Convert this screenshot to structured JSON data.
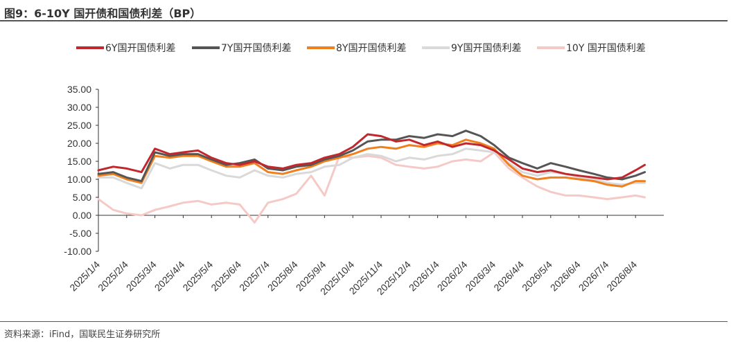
{
  "header": {
    "title": "图9：6-10Y 国开债和国债利差（BP）"
  },
  "footer": {
    "source": "资料来源：iFind，国联民生证券研究所"
  },
  "chart_data": {
    "type": "line",
    "title": "图9：6-10Y 国开债和国债利差（BP）",
    "xlabel": "",
    "ylabel": "",
    "ylim": [
      -10,
      35
    ],
    "yticks": [
      "35.00",
      "30.00",
      "25.00",
      "20.00",
      "15.00",
      "10.00",
      "5.00",
      "0.00",
      "-5.00",
      "-10.00"
    ],
    "ytick_values": [
      35,
      30,
      25,
      20,
      15,
      10,
      5,
      0,
      -5,
      -10
    ],
    "xticks": [
      "2025/1/4",
      "2025/2/4",
      "2025/3/4",
      "2025/4/4",
      "2025/5/4",
      "2025/6/4",
      "2025/7/4",
      "2025/8/4",
      "2025/9/4",
      "2025/10/4",
      "2025/11/4",
      "2025/12/4",
      "2026/1/4",
      "2026/2/4",
      "2026/3/4",
      "2026/4/4",
      "2026/5/4",
      "2026/6/4",
      "2026/7/4",
      "2026/8/4"
    ],
    "legend_position": "top",
    "grid": false,
    "x": [
      "2025/1/4",
      "2025/1/20",
      "2025/2/4",
      "2025/2/20",
      "2025/3/4",
      "2025/3/20",
      "2025/4/4",
      "2025/4/20",
      "2025/5/4",
      "2025/5/20",
      "2025/6/4",
      "2025/6/20",
      "2025/7/4",
      "2025/7/20",
      "2025/8/4",
      "2025/8/20",
      "2025/9/4",
      "2025/9/20",
      "2025/10/4",
      "2025/10/20",
      "2025/11/4",
      "2025/11/20",
      "2025/12/4",
      "2025/12/20",
      "2026/1/4",
      "2026/1/20",
      "2026/2/4",
      "2026/2/20",
      "2026/3/4",
      "2026/3/20",
      "2026/4/4",
      "2026/4/20",
      "2026/5/4",
      "2026/5/20",
      "2026/6/4",
      "2026/6/20",
      "2026/7/4",
      "2026/7/20",
      "2026/8/4",
      "2026/8/14"
    ],
    "series": [
      {
        "name": "6Y国开国债利差",
        "color": "#c0282d",
        "values": [
          12.5,
          13.5,
          13.0,
          12.0,
          18.5,
          17.0,
          17.5,
          18.0,
          16.0,
          14.5,
          14.0,
          15.0,
          13.5,
          13.0,
          14.0,
          14.5,
          16.0,
          17.0,
          19.0,
          22.5,
          22.0,
          20.5,
          21.0,
          19.5,
          20.5,
          19.0,
          20.0,
          19.5,
          18.0,
          15.5,
          13.0,
          12.0,
          12.5,
          11.5,
          11.0,
          10.5,
          10.0,
          10.5,
          12.5,
          14.0
        ]
      },
      {
        "name": "7Y国开国债利差",
        "color": "#555555",
        "values": [
          11.5,
          12.0,
          10.5,
          9.5,
          17.5,
          16.5,
          17.0,
          17.0,
          15.5,
          14.0,
          14.5,
          15.5,
          13.0,
          12.5,
          13.5,
          14.0,
          15.5,
          16.5,
          18.0,
          20.5,
          21.0,
          21.0,
          22.0,
          21.5,
          22.5,
          22.0,
          23.5,
          22.0,
          19.5,
          16.0,
          14.5,
          13.0,
          14.5,
          13.5,
          12.5,
          11.5,
          10.5,
          10.0,
          11.0,
          12.0
        ]
      },
      {
        "name": "8Y国开国债利差",
        "color": "#f07f1e",
        "values": [
          11.0,
          11.5,
          10.0,
          9.0,
          16.5,
          16.0,
          16.5,
          16.5,
          15.0,
          13.5,
          13.5,
          14.5,
          12.0,
          11.5,
          12.5,
          13.5,
          15.0,
          16.0,
          17.0,
          18.5,
          19.0,
          18.5,
          19.5,
          19.0,
          20.0,
          19.5,
          21.0,
          20.0,
          18.5,
          14.0,
          11.0,
          10.0,
          10.5,
          10.5,
          10.0,
          9.5,
          8.5,
          8.0,
          9.5,
          9.5
        ]
      },
      {
        "name": "9Y国开国债利差",
        "color": "#d9d9d9",
        "values": [
          10.5,
          10.5,
          9.0,
          7.5,
          14.5,
          13.0,
          14.0,
          14.0,
          12.5,
          11.0,
          10.5,
          12.5,
          11.0,
          10.5,
          11.5,
          12.0,
          13.5,
          14.0,
          16.0,
          17.0,
          16.5,
          15.0,
          16.0,
          15.5,
          16.5,
          17.0,
          18.5,
          18.0,
          17.5,
          14.5,
          12.0,
          11.0,
          12.0,
          11.5,
          10.5,
          10.0,
          9.0,
          8.5,
          9.0,
          9.0
        ]
      },
      {
        "name": "10Y 国开国债利差",
        "color": "#f5c9c6",
        "values": [
          4.5,
          1.5,
          0.5,
          0.0,
          1.5,
          2.5,
          3.5,
          4.0,
          3.0,
          3.5,
          3.0,
          -2.0,
          3.5,
          4.5,
          6.0,
          11.0,
          5.5,
          16.5,
          16.0,
          16.5,
          16.0,
          14.0,
          13.5,
          13.0,
          13.5,
          15.0,
          15.5,
          15.0,
          17.5,
          13.0,
          10.5,
          8.0,
          6.5,
          5.5,
          5.5,
          5.0,
          4.5,
          5.0,
          5.5,
          5.0
        ]
      }
    ]
  }
}
